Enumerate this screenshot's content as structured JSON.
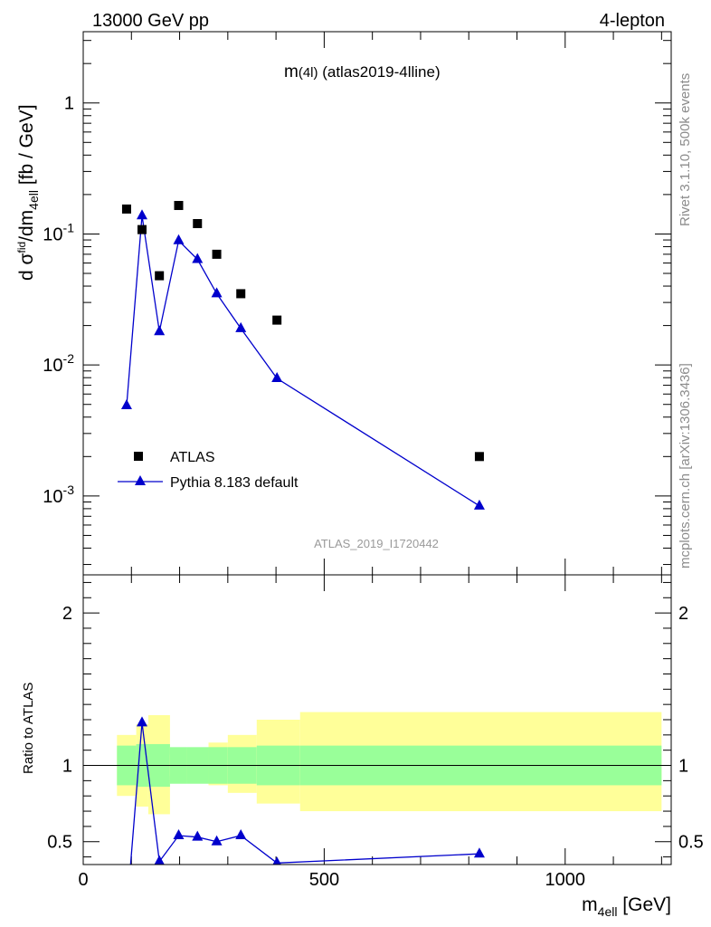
{
  "header": {
    "left": "13000 GeV pp",
    "right": "4-lepton"
  },
  "side_text": {
    "version": "Rivet 3.1.10,  500k events",
    "source": "mcplots.cern.ch [arXiv:1306.3436]"
  },
  "plot_title": {
    "main": "m",
    "paren": "(4l)",
    "rest": " (atlas2019-4lline)"
  },
  "watermark": "ATLAS_2019_I1720442",
  "ylabel_parts": {
    "a": "d σ",
    "fid": "fid",
    "b": "/dm",
    "sub": "4ell",
    "c": " [fb / GeV]"
  },
  "ratio_ylabel": "Ratio to ATLAS",
  "xlabel_parts": {
    "a": "m",
    "sub": "4ell",
    "b": " [GeV]"
  },
  "legend": {
    "data": "ATLAS",
    "mc": "Pythia 8.183 default"
  },
  "colors": {
    "data": "#000000",
    "mc": "#0000cc",
    "band_inner": "#99ff99",
    "band_outer": "#ffff99"
  },
  "chart_data": [
    {
      "type": "scatter",
      "title": "m(4l) (atlas2019-4lline)",
      "xlabel": "m4ell [GeV]",
      "ylabel": "d σfid/dm4ell [fb / GeV]",
      "yscale": "log",
      "xlim": [
        0,
        1220
      ],
      "ylim": [
        0.00025,
        3.5
      ],
      "x_ticks": [
        0,
        500,
        1000
      ],
      "y_tick_labels": [
        "10^-3",
        "10^-2",
        "10^-1",
        "1"
      ],
      "legend_position": "bottom-left",
      "series": [
        {
          "name": "ATLAS",
          "marker": "square",
          "x": [
            90,
            122,
            158,
            198,
            237,
            277,
            327,
            402,
            822
          ],
          "y": [
            0.155,
            0.108,
            0.048,
            0.165,
            0.12,
            0.07,
            0.035,
            0.022,
            0.002
          ]
        },
        {
          "name": "Pythia 8.183 default",
          "marker": "triangle",
          "x": [
            90,
            122,
            158,
            198,
            237,
            277,
            327,
            402,
            822
          ],
          "y": [
            0.0049,
            0.138,
            0.018,
            0.089,
            0.064,
            0.035,
            0.019,
            0.0079,
            0.00084
          ]
        }
      ]
    },
    {
      "type": "line",
      "ylabel": "Ratio to ATLAS",
      "xlabel": "m4ell [GeV]",
      "xlim": [
        0,
        1220
      ],
      "ylim": [
        0.35,
        2.25
      ],
      "x_ticks": [
        0,
        500,
        1000
      ],
      "y_ticks": [
        0.5,
        1,
        2
      ],
      "reference_line": 1,
      "bands": {
        "edges": [
          70,
          110,
          135,
          180,
          215,
          260,
          300,
          360,
          450,
          1200
        ],
        "inner_low": [
          0.87,
          0.86,
          0.86,
          0.88,
          0.88,
          0.88,
          0.88,
          0.87,
          0.87
        ],
        "inner_high": [
          1.13,
          1.14,
          1.14,
          1.12,
          1.12,
          1.12,
          1.12,
          1.13,
          1.13
        ],
        "outer_low": [
          0.8,
          0.73,
          0.68,
          0.93,
          0.9,
          0.87,
          0.82,
          0.75,
          0.7
        ],
        "outer_high": [
          1.2,
          1.27,
          1.33,
          1.07,
          1.1,
          1.15,
          1.2,
          1.3,
          1.35
        ]
      },
      "series": [
        {
          "name": "Pythia 8.183 default",
          "x": [
            90,
            122,
            158,
            198,
            237,
            277,
            327,
            402,
            822
          ],
          "y": [
            0.03,
            1.28,
            0.37,
            0.54,
            0.53,
            0.5,
            0.54,
            0.36,
            0.42
          ]
        }
      ]
    }
  ]
}
